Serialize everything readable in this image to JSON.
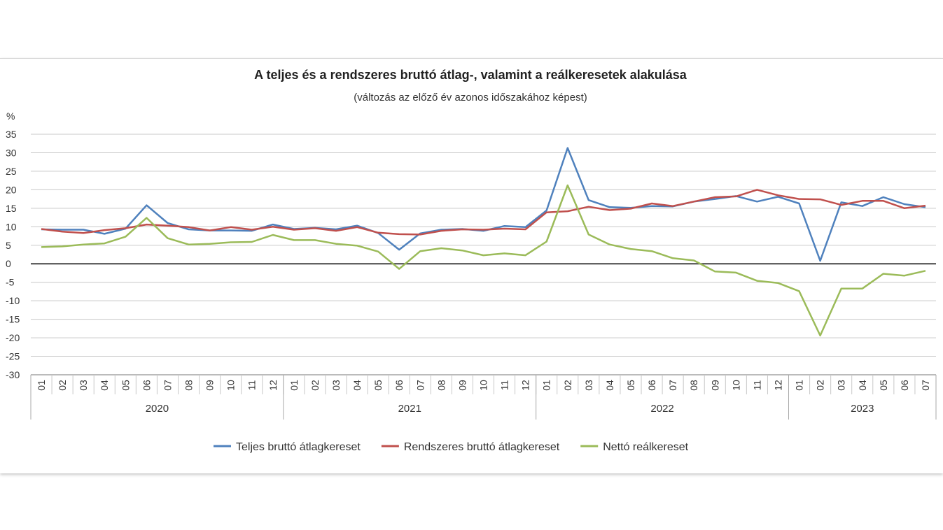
{
  "chart_data": {
    "type": "line",
    "title": "A teljes és a rendszeres bruttó átlag-, valamint a reálkeresetek alakulása",
    "subtitle": "(változás az előző év azonos időszakához képest)",
    "ylabel": "%",
    "ylim": [
      -30,
      35
    ],
    "yticks": [
      35,
      30,
      25,
      20,
      15,
      10,
      5,
      0,
      -5,
      -10,
      -15,
      -20,
      -25,
      -30
    ],
    "grid": true,
    "legend_position": "bottom",
    "x": [
      "01",
      "02",
      "03",
      "04",
      "05",
      "06",
      "07",
      "08",
      "09",
      "10",
      "11",
      "12",
      "01",
      "02",
      "03",
      "04",
      "05",
      "06",
      "07",
      "08",
      "09",
      "10",
      "11",
      "12",
      "01",
      "02",
      "03",
      "04",
      "05",
      "06",
      "07",
      "08",
      "09",
      "10",
      "11",
      "12",
      "01",
      "02",
      "03",
      "04",
      "05",
      "06",
      "07"
    ],
    "year_groups": [
      {
        "label": "2020",
        "count": 12
      },
      {
        "label": "2021",
        "count": 12
      },
      {
        "label": "2022",
        "count": 12
      },
      {
        "label": "2023",
        "count": 7
      }
    ],
    "series": [
      {
        "name": "Teljes bruttó átlagkereset",
        "color": "#4f81bd",
        "values": [
          9.3,
          9.2,
          9.2,
          8.1,
          9.5,
          15.8,
          11.0,
          9.3,
          9.0,
          9.0,
          8.9,
          10.6,
          9.4,
          9.7,
          9.3,
          10.3,
          8.3,
          3.8,
          8.2,
          9.2,
          9.4,
          8.9,
          10.2,
          9.9,
          14.4,
          31.3,
          17.2,
          15.3,
          15.1,
          15.6,
          15.5,
          16.8,
          17.5,
          18.3,
          16.8,
          18.1,
          16.3,
          0.8,
          16.6,
          15.6,
          18.0,
          16.1,
          15.3
        ]
      },
      {
        "name": "Rendszeres bruttó átlagkereset",
        "color": "#c0504d",
        "values": [
          9.4,
          8.7,
          8.3,
          9.1,
          9.6,
          10.6,
          10.3,
          9.9,
          9.0,
          9.9,
          9.2,
          10.0,
          9.2,
          9.6,
          8.9,
          9.9,
          8.4,
          8.0,
          7.9,
          8.9,
          9.3,
          9.2,
          9.5,
          9.3,
          13.9,
          14.2,
          15.4,
          14.5,
          14.9,
          16.3,
          15.6,
          16.8,
          18.0,
          18.2,
          20.0,
          18.5,
          17.5,
          17.4,
          15.9,
          17.0,
          17.0,
          15.0,
          15.7
        ]
      },
      {
        "name": "Nettó reálkereset",
        "color": "#9bbb59",
        "values": [
          4.5,
          4.7,
          5.2,
          5.5,
          7.3,
          12.4,
          6.9,
          5.2,
          5.4,
          5.8,
          5.9,
          7.8,
          6.4,
          6.4,
          5.4,
          4.9,
          3.3,
          -1.4,
          3.4,
          4.2,
          3.6,
          2.3,
          2.8,
          2.3,
          6.0,
          21.2,
          7.9,
          5.2,
          4.0,
          3.4,
          1.5,
          0.9,
          -2.1,
          -2.4,
          -4.6,
          -5.2,
          -7.4,
          -19.4,
          -6.7,
          -6.7,
          -2.7,
          -3.2,
          -1.9
        ]
      }
    ]
  }
}
